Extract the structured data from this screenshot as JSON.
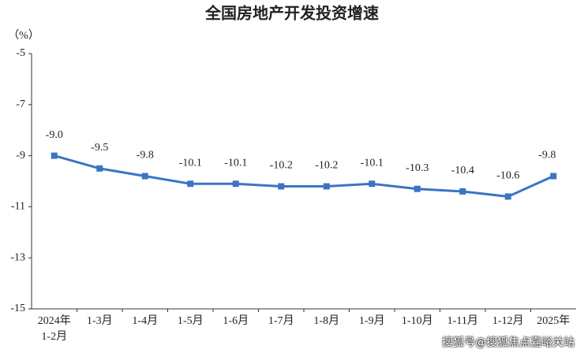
{
  "chart_data": {
    "type": "line",
    "title": "全国房地产开发投资增速",
    "y_label": "（%）",
    "categories": [
      "2024年\n1-2月",
      "1-3月",
      "1-4月",
      "1-5月",
      "1-6月",
      "1-7月",
      "1-8月",
      "1-9月",
      "1-10月",
      "1-11月",
      "1-12月",
      "2025年"
    ],
    "series": [
      {
        "name": "全国房地产开发投资增速",
        "color": "#3a75c4",
        "values": [
          -9.0,
          -9.5,
          -9.8,
          -10.1,
          -10.1,
          -10.2,
          -10.2,
          -10.1,
          -10.3,
          -10.4,
          -10.6,
          -9.8
        ],
        "value_labels": [
          "-9.0",
          "-9.5",
          "-9.8",
          "-10.1",
          "-10.1",
          "-10.2",
          "-10.2",
          "-10.1",
          "-10.3",
          "-10.4",
          "-10.6",
          "-9.8"
        ]
      }
    ],
    "ylim": [
      -15,
      -5
    ],
    "yticks": [
      -15,
      -13,
      -11,
      -9,
      -7,
      -5
    ],
    "grid": false,
    "watermark": "搜狐号@搜狐焦点嘉峪关站"
  }
}
